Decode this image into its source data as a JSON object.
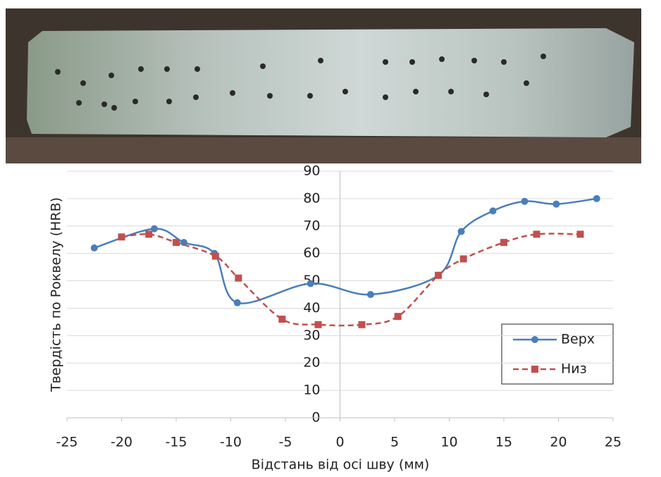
{
  "chart_data": {
    "type": "line",
    "y_label": "Твердість по Роквелу (HRB)",
    "x_label": "Відстань від осі шву (мм)",
    "xlim": [
      -25,
      25
    ],
    "xticks": [
      -25,
      -20,
      -15,
      -10,
      -5,
      0,
      5,
      10,
      15,
      20,
      25
    ],
    "ylim": [
      0,
      90
    ],
    "yticks": [
      0,
      10,
      20,
      30,
      40,
      50,
      60,
      70,
      80,
      90
    ],
    "grid": true,
    "legend": "lower-right",
    "series": [
      {
        "name": "Верх",
        "color": "#4a7ebb",
        "marker": "circle",
        "dash": "solid",
        "x": [
          -22.5,
          -17,
          -14.3,
          -11.5,
          -9.4,
          -2.7,
          2.8,
          9,
          11.1,
          14,
          16.9,
          19.8,
          23.5
        ],
        "values": [
          62,
          69,
          64,
          60,
          42,
          49,
          45,
          52,
          68,
          75.5,
          79,
          78,
          80
        ]
      },
      {
        "name": "Низ",
        "color": "#c0504d",
        "marker": "square",
        "dash": "dashed",
        "x": [
          -20,
          -17.5,
          -15,
          -11.4,
          -9.3,
          -5.3,
          -2,
          2,
          5.3,
          9,
          11.3,
          15,
          18,
          22
        ],
        "values": [
          66,
          67,
          64,
          59,
          51,
          36,
          34,
          34,
          37,
          52,
          58,
          64,
          67,
          67
        ]
      }
    ]
  }
}
